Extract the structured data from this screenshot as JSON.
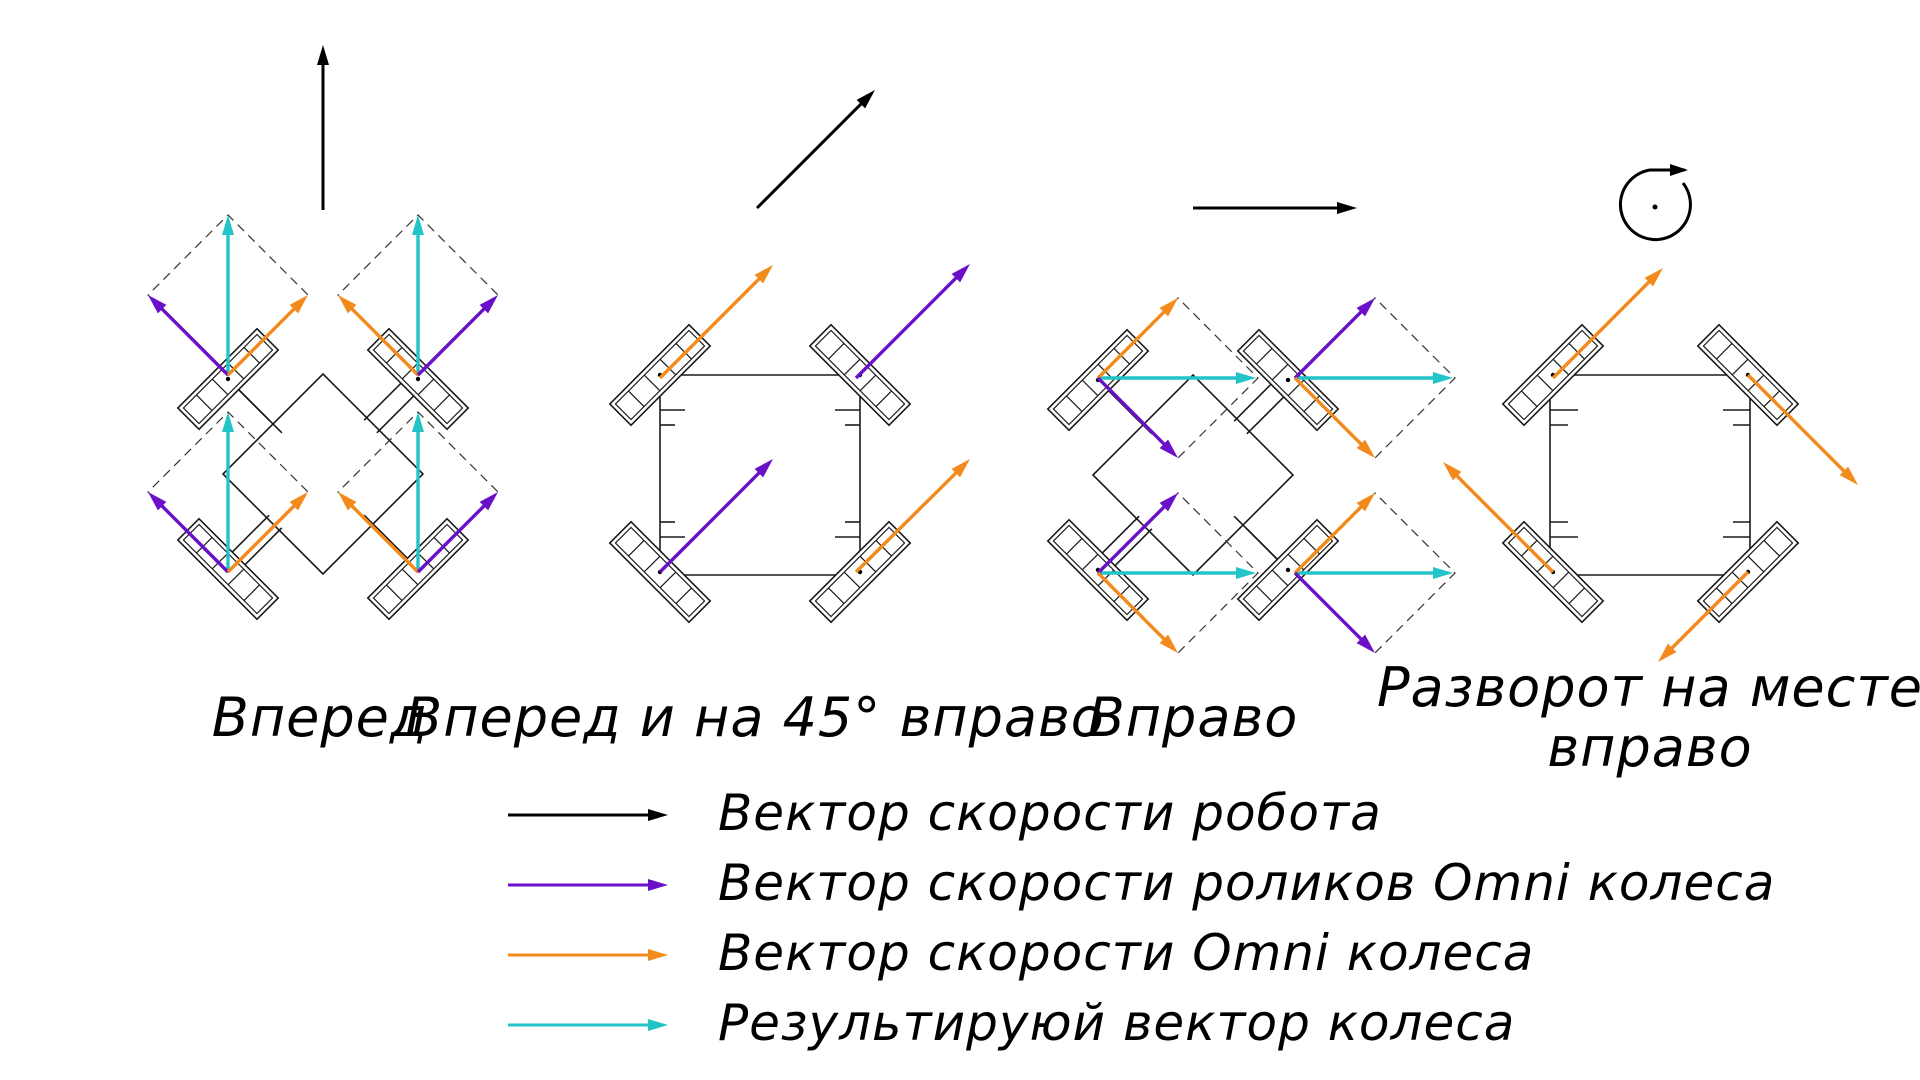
{
  "colors": {
    "robot": "#000000",
    "roller": "#6a10c8",
    "wheel": "#f28a1c",
    "result": "#22c4c8"
  },
  "panels": [
    {
      "id": "forward",
      "caption": "Вперед"
    },
    {
      "id": "forward-45-right",
      "caption": "Вперед и на 45° вправо"
    },
    {
      "id": "right",
      "caption": "Вправо"
    },
    {
      "id": "rotate-right",
      "caption_line1": "Разворот на месте",
      "caption_line2": "вправо"
    }
  ],
  "legend": [
    {
      "id": "robot",
      "label": "Вектор скорости робота",
      "color": "#000000"
    },
    {
      "id": "roller",
      "label": "Вектор скорости роликов Omni колеса",
      "color": "#6a10c8"
    },
    {
      "id": "wheel",
      "label": "Вектор скорости Omni колеса",
      "color": "#f28a1c"
    },
    {
      "id": "result",
      "label": "Результируюй вектор колеса",
      "color": "#22c4c8"
    }
  ]
}
